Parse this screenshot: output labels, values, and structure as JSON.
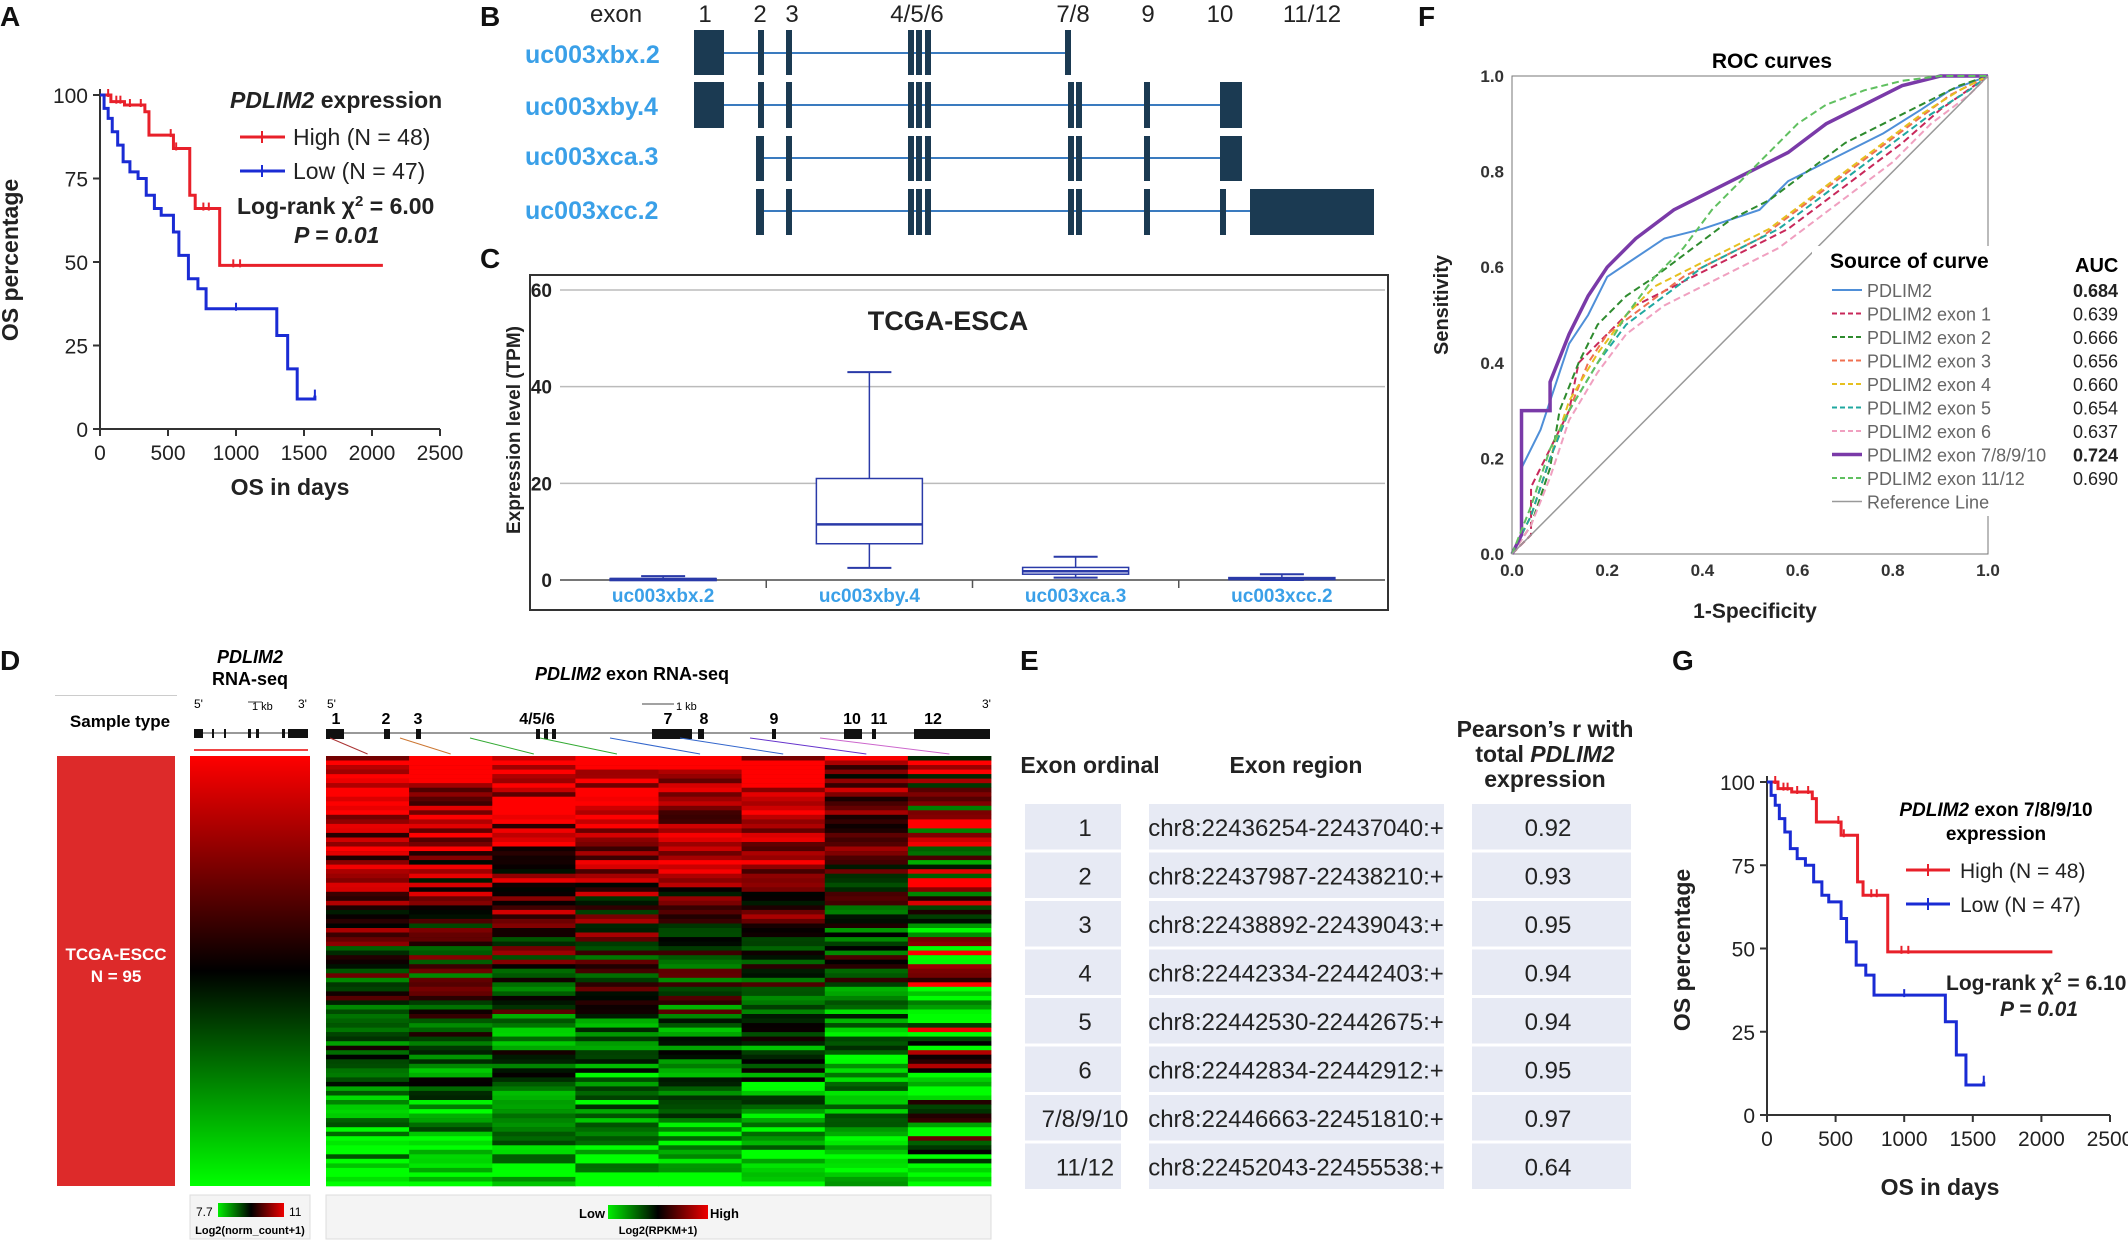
{
  "panels": {
    "A": {
      "label": "A",
      "title_italic": "PDLIM2",
      "title_rest": " expression",
      "ylabel": "OS percentage",
      "xlabel": "OS in days",
      "legend": [
        {
          "name": "High (N = 48)",
          "color": "#e8202a"
        },
        {
          "name": "Low (N = 47)",
          "color": "#1a2bd4"
        }
      ],
      "stat_line1": "Log-rank χ",
      "stat_sup": "2",
      "stat_eq": " = 6.00",
      "stat_line2": "P = 0.01"
    },
    "B": {
      "label": "B",
      "exon_header": "exon",
      "exon_labels": [
        "1",
        "2",
        "3",
        "4/5/6",
        "7/8",
        "9",
        "10",
        "11/12"
      ],
      "transcripts": [
        "uc003xbx.2",
        "uc003xby.4",
        "uc003xca.3",
        "uc003xcc.2"
      ]
    },
    "C": {
      "label": "C",
      "title": "TCGA-ESCA",
      "ylabel": "Expression level (TPM)"
    },
    "D": {
      "label": "D",
      "col1": "Sample type",
      "col2_italic": "PDLIM2",
      "col2_rest": "RNA-seq",
      "col3_italic": "PDLIM2",
      "col3_rest": " exon RNA-seq",
      "sample_name": "TCGA-ESCC",
      "sample_n": "N = 95",
      "scale_kb": "1 kb",
      "prime5": "5'",
      "prime3": "3'",
      "exon_labels": [
        "1",
        "2",
        "3",
        "4/5/6",
        "7",
        "8",
        "9",
        "10",
        "11",
        "12"
      ],
      "legend1_min": "7.7",
      "legend1_max": "11",
      "legend1_caption": "Log2(norm_count+1)",
      "legend2_low": "Low",
      "legend2_high": "High",
      "legend2_caption": "Log2(RPKM+1)"
    },
    "E": {
      "label": "E",
      "headers": [
        "Exon ordinal",
        "Exon region"
      ],
      "header3_l1": "Pearson’s r with",
      "header3_l2a": "total ",
      "header3_l2b": "PDLIM2",
      "header3_l3": "expression",
      "rows": [
        [
          "1",
          "chr8:22436254-22437040:+",
          "0.92"
        ],
        [
          "2",
          "chr8:22437987-22438210:+",
          "0.93"
        ],
        [
          "3",
          "chr8:22438892-22439043:+",
          "0.95"
        ],
        [
          "4",
          "chr8:22442334-22442403:+",
          "0.94"
        ],
        [
          "5",
          "chr8:22442530-22442675:+",
          "0.94"
        ],
        [
          "6",
          "chr8:22442834-22442912:+",
          "0.95"
        ],
        [
          "7/8/9/10",
          "chr8:22446663-22451810:+",
          "0.97"
        ],
        [
          "11/12",
          "chr8:22452043-22455538:+",
          "0.64"
        ]
      ]
    },
    "F": {
      "label": "F",
      "title": "ROC curves",
      "xlabel": "1-Specificity",
      "ylabel": "Sensitivity",
      "legend_title": "Source of curve",
      "auc_title": "AUC"
    },
    "G": {
      "label": "G",
      "title_italic": "PDLIM2",
      "title_rest": " exon 7/8/9/10",
      "title_line2": "expression",
      "ylabel": "OS percentage",
      "xlabel": "OS in days",
      "legend": [
        {
          "name": "High (N = 48)",
          "color": "#e8202a"
        },
        {
          "name": "Low (N = 47)",
          "color": "#1a2bd4"
        }
      ],
      "stat_line1": "Log-rank χ",
      "stat_sup": "2",
      "stat_eq": " = 6.10",
      "stat_line2": "P = 0.01"
    }
  },
  "chart_data": [
    {
      "id": "A",
      "type": "line",
      "xlabel": "OS in days",
      "ylabel": "OS percentage",
      "xlim": [
        0,
        2500
      ],
      "ylim": [
        0,
        100
      ],
      "xticks": [
        0,
        500,
        1000,
        1500,
        2000,
        2500
      ],
      "yticks": [
        0,
        25,
        50,
        75,
        100
      ],
      "series": [
        {
          "name": "High (N = 48)",
          "color": "#e8202a",
          "x": [
            0,
            40,
            80,
            120,
            180,
            240,
            330,
            360,
            480,
            540,
            600,
            660,
            700,
            840,
            880,
            2080
          ],
          "y": [
            100,
            100,
            98,
            98,
            97,
            97,
            95,
            88,
            88,
            84,
            84,
            70,
            66,
            66,
            49,
            49
          ]
        },
        {
          "name": "Low (N = 47)",
          "color": "#1a2bd4",
          "x": [
            0,
            30,
            60,
            90,
            130,
            170,
            220,
            280,
            340,
            400,
            450,
            500,
            540,
            580,
            650,
            720,
            780,
            880,
            1250,
            1300,
            1380,
            1450,
            1580
          ],
          "y": [
            100,
            96,
            93,
            89,
            85,
            80,
            77,
            75,
            70,
            66,
            64,
            64,
            59,
            52,
            45,
            42,
            36,
            36,
            36,
            28,
            18,
            9,
            10
          ]
        }
      ]
    },
    {
      "id": "C",
      "type": "box",
      "title": "TCGA-ESCA",
      "ylabel": "Expression level (TPM)",
      "ylim": [
        0,
        60
      ],
      "yticks": [
        0,
        20,
        40,
        60
      ],
      "categories": [
        "uc003xbx.2",
        "uc003xby.4",
        "uc003xca.3",
        "uc003xcc.2"
      ],
      "boxes": [
        {
          "min": 0,
          "q1": 0.1,
          "median": 0.2,
          "q3": 0.3,
          "max": 0.8
        },
        {
          "min": 2.5,
          "q1": 7.5,
          "median": 11.5,
          "q3": 21,
          "max": 43
        },
        {
          "min": 0.5,
          "q1": 1.2,
          "median": 1.8,
          "q3": 2.6,
          "max": 4.8
        },
        {
          "min": 0,
          "q1": 0.1,
          "median": 0.3,
          "q3": 0.5,
          "max": 1.2
        }
      ]
    },
    {
      "id": "F",
      "type": "line",
      "title": "ROC curves",
      "xlabel": "1-Specificity",
      "ylabel": "Sensitivity",
      "xlim": [
        0,
        1
      ],
      "ylim": [
        0,
        1
      ],
      "xticks": [
        0.0,
        0.2,
        0.4,
        0.6,
        0.8,
        1.0
      ],
      "yticks": [
        0.0,
        0.2,
        0.4,
        0.6,
        0.8,
        1.0
      ],
      "series": [
        {
          "name": "PDLIM2",
          "auc": "0.684",
          "bold": true,
          "color": "#4f8fd8",
          "dash": "",
          "x": [
            0,
            0.02,
            0.02,
            0.06,
            0.1,
            0.12,
            0.16,
            0.2,
            0.26,
            0.32,
            0.4,
            0.46,
            0.52,
            0.58,
            0.62,
            0.7,
            0.78,
            0.86,
            0.92,
            1
          ],
          "y": [
            0,
            0.04,
            0.18,
            0.26,
            0.38,
            0.44,
            0.5,
            0.58,
            0.62,
            0.66,
            0.68,
            0.7,
            0.72,
            0.78,
            0.8,
            0.84,
            0.88,
            0.93,
            0.97,
            1
          ]
        },
        {
          "name": "PDLIM2 exon 1",
          "auc": "0.639",
          "bold": false,
          "color": "#c8285a",
          "dash": "7,4",
          "x": [
            0,
            0.04,
            0.04,
            0.08,
            0.12,
            0.14,
            0.2,
            0.26,
            0.34,
            0.42,
            0.5,
            0.58,
            0.66,
            0.74,
            0.82,
            0.9,
            1
          ],
          "y": [
            0,
            0.04,
            0.14,
            0.22,
            0.3,
            0.4,
            0.46,
            0.52,
            0.56,
            0.6,
            0.64,
            0.68,
            0.74,
            0.8,
            0.86,
            0.93,
            1
          ]
        },
        {
          "name": "PDLIM2 exon 2",
          "auc": "0.666",
          "bold": false,
          "color": "#2e8b2e",
          "dash": "7,4",
          "x": [
            0,
            0.04,
            0.08,
            0.1,
            0.14,
            0.18,
            0.24,
            0.3,
            0.38,
            0.46,
            0.54,
            0.62,
            0.7,
            0.78,
            0.86,
            0.94,
            1
          ],
          "y": [
            0,
            0.06,
            0.18,
            0.3,
            0.4,
            0.48,
            0.54,
            0.58,
            0.64,
            0.7,
            0.74,
            0.8,
            0.86,
            0.9,
            0.94,
            0.98,
            1
          ]
        },
        {
          "name": "PDLIM2 exon 3",
          "auc": "0.656",
          "bold": false,
          "color": "#f07050",
          "dash": "7,4",
          "x": [
            0,
            0.04,
            0.08,
            0.12,
            0.16,
            0.2,
            0.28,
            0.36,
            0.44,
            0.52,
            0.6,
            0.68,
            0.76,
            0.84,
            0.92,
            1
          ],
          "y": [
            0,
            0.08,
            0.2,
            0.3,
            0.4,
            0.46,
            0.52,
            0.58,
            0.62,
            0.66,
            0.72,
            0.78,
            0.84,
            0.9,
            0.96,
            1
          ]
        },
        {
          "name": "PDLIM2 exon 4",
          "auc": "0.660",
          "bold": false,
          "color": "#e6c020",
          "dash": "7,4",
          "x": [
            0,
            0.04,
            0.08,
            0.12,
            0.18,
            0.24,
            0.3,
            0.38,
            0.46,
            0.54,
            0.62,
            0.7,
            0.78,
            0.86,
            0.94,
            1
          ],
          "y": [
            0,
            0.08,
            0.2,
            0.32,
            0.42,
            0.5,
            0.56,
            0.6,
            0.64,
            0.68,
            0.74,
            0.8,
            0.86,
            0.92,
            0.97,
            1
          ]
        },
        {
          "name": "PDLIM2 exon 5",
          "auc": "0.654",
          "bold": false,
          "color": "#20a8a0",
          "dash": "7,4",
          "x": [
            0,
            0.04,
            0.08,
            0.12,
            0.18,
            0.24,
            0.32,
            0.4,
            0.48,
            0.56,
            0.64,
            0.72,
            0.8,
            0.88,
            0.96,
            1
          ],
          "y": [
            0,
            0.08,
            0.2,
            0.3,
            0.4,
            0.48,
            0.54,
            0.6,
            0.64,
            0.68,
            0.74,
            0.8,
            0.86,
            0.92,
            0.97,
            1
          ]
        },
        {
          "name": "PDLIM2 exon 6",
          "auc": "0.637",
          "bold": false,
          "color": "#f0a0c0",
          "dash": "7,4",
          "x": [
            0,
            0.04,
            0.08,
            0.12,
            0.18,
            0.24,
            0.32,
            0.4,
            0.48,
            0.56,
            0.64,
            0.72,
            0.8,
            0.88,
            0.96,
            1
          ],
          "y": [
            0,
            0.06,
            0.16,
            0.28,
            0.38,
            0.46,
            0.52,
            0.56,
            0.6,
            0.64,
            0.7,
            0.76,
            0.82,
            0.9,
            0.96,
            1
          ]
        },
        {
          "name": "PDLIM2 exon 7/8/9/10",
          "auc": "0.724",
          "bold": true,
          "color": "#7a3aa8",
          "dash": "",
          "x": [
            0,
            0.02,
            0.02,
            0.08,
            0.08,
            0.12,
            0.16,
            0.2,
            0.26,
            0.34,
            0.42,
            0.5,
            0.58,
            0.66,
            0.74,
            0.82,
            0.9,
            0.96,
            1
          ],
          "y": [
            0,
            0.04,
            0.3,
            0.3,
            0.36,
            0.46,
            0.54,
            0.6,
            0.66,
            0.72,
            0.76,
            0.8,
            0.84,
            0.9,
            0.94,
            0.98,
            1,
            1,
            1
          ]
        },
        {
          "name": "PDLIM2 exon 11/12",
          "auc": "0.690",
          "bold": false,
          "color": "#60c060",
          "dash": "7,4",
          "x": [
            0,
            0.04,
            0.08,
            0.12,
            0.18,
            0.24,
            0.3,
            0.36,
            0.42,
            0.48,
            0.54,
            0.6,
            0.66,
            0.74,
            0.82,
            0.9,
            1
          ],
          "y": [
            0,
            0.1,
            0.22,
            0.3,
            0.4,
            0.5,
            0.58,
            0.64,
            0.72,
            0.78,
            0.84,
            0.9,
            0.94,
            0.97,
            0.99,
            1,
            1
          ]
        },
        {
          "name": "Reference Line",
          "auc": "",
          "bold": false,
          "color": "#999999",
          "dash": "",
          "x": [
            0,
            1
          ],
          "y": [
            0,
            1
          ]
        }
      ]
    },
    {
      "id": "G",
      "type": "line",
      "xlabel": "OS in days",
      "ylabel": "OS percentage",
      "xlim": [
        0,
        2500
      ],
      "ylim": [
        0,
        100
      ],
      "xticks": [
        0,
        500,
        1000,
        1500,
        2000,
        2500
      ],
      "yticks": [
        0,
        25,
        50,
        75,
        100
      ],
      "series": [
        {
          "name": "High (N = 48)",
          "color": "#e8202a",
          "x": [
            0,
            40,
            80,
            120,
            180,
            240,
            330,
            360,
            480,
            540,
            600,
            660,
            700,
            840,
            880,
            2080
          ],
          "y": [
            100,
            100,
            98,
            98,
            97,
            97,
            95,
            88,
            88,
            84,
            84,
            70,
            66,
            66,
            49,
            49
          ]
        },
        {
          "name": "Low (N = 47)",
          "color": "#1a2bd4",
          "x": [
            0,
            30,
            60,
            90,
            130,
            170,
            220,
            280,
            340,
            400,
            450,
            500,
            540,
            580,
            650,
            720,
            780,
            880,
            1250,
            1300,
            1380,
            1450,
            1580
          ],
          "y": [
            100,
            96,
            93,
            89,
            85,
            80,
            77,
            75,
            70,
            66,
            64,
            64,
            59,
            52,
            45,
            42,
            36,
            36,
            36,
            28,
            18,
            9,
            10
          ]
        }
      ]
    }
  ]
}
